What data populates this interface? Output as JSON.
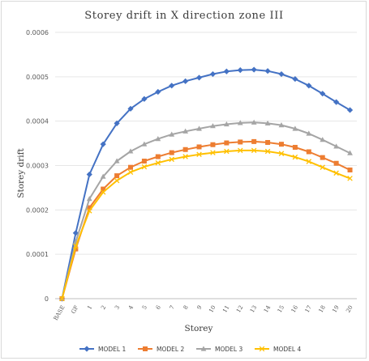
{
  "chart_data": {
    "type": "line",
    "title": "Storey drift in X direction zone III",
    "xlabel": "Storey",
    "ylabel": "Storey drift",
    "categories": [
      "BASE",
      "GF",
      "1",
      "2",
      "3",
      "4",
      "5",
      "6",
      "7",
      "8",
      "9",
      "10",
      "11",
      "12",
      "13",
      "14",
      "15",
      "16",
      "17",
      "18",
      "19",
      "20"
    ],
    "ylim": [
      0,
      0.0006
    ],
    "yticks": [
      "0",
      "0.0001",
      "0.0002",
      "0.0003",
      "0.0004",
      "0.0005",
      "0.0006"
    ],
    "grid": true,
    "legend_position": "bottom",
    "series": [
      {
        "name": "MODEL 1",
        "color": "#4472c4",
        "marker": "diamond",
        "values": [
          0,
          0.000148,
          0.00028,
          0.000348,
          0.000395,
          0.000428,
          0.00045,
          0.000466,
          0.00048,
          0.00049,
          0.000498,
          0.000506,
          0.000512,
          0.000515,
          0.000516,
          0.000513,
          0.000506,
          0.000495,
          0.00048,
          0.000462,
          0.000443,
          0.000425
        ]
      },
      {
        "name": "MODEL 2",
        "color": "#ed7d31",
        "marker": "square",
        "values": [
          0,
          0.000112,
          0.000205,
          0.000247,
          0.000277,
          0.000296,
          0.00031,
          0.00032,
          0.000329,
          0.000336,
          0.000342,
          0.000347,
          0.000351,
          0.000353,
          0.000354,
          0.000352,
          0.000348,
          0.000341,
          0.000331,
          0.000318,
          0.000305,
          0.00029
        ]
      },
      {
        "name": "MODEL 3",
        "color": "#a5a5a5",
        "marker": "triangle",
        "values": [
          0,
          0.000128,
          0.000225,
          0.000275,
          0.00031,
          0.000332,
          0.000348,
          0.00036,
          0.00037,
          0.000377,
          0.000383,
          0.000389,
          0.000393,
          0.000396,
          0.000397,
          0.000395,
          0.000391,
          0.000383,
          0.000372,
          0.000358,
          0.000343,
          0.000328
        ]
      },
      {
        "name": "MODEL 4",
        "color": "#ffc000",
        "marker": "x",
        "values": [
          0,
          0.000118,
          0.000198,
          0.00024,
          0.000266,
          0.000285,
          0.000297,
          0.000306,
          0.000314,
          0.00032,
          0.000325,
          0.000329,
          0.000332,
          0.000334,
          0.000334,
          0.000332,
          0.000327,
          0.000319,
          0.000309,
          0.000296,
          0.000283,
          0.000271
        ]
      }
    ]
  }
}
